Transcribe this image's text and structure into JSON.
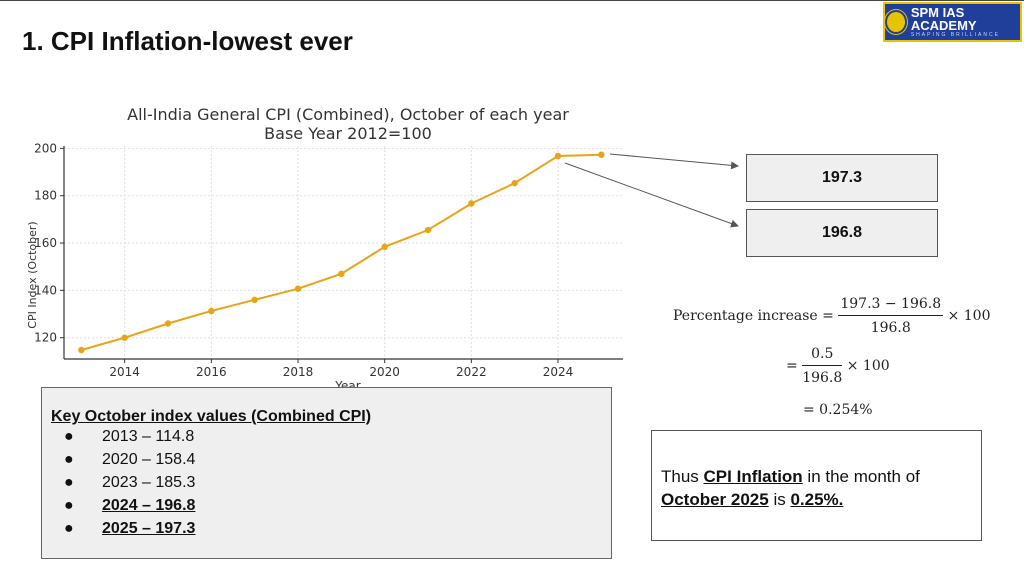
{
  "slide": {
    "title": "1.  CPI Inflation-lowest ever"
  },
  "logo": {
    "text": "SPM IAS ACADEMY",
    "tagline": "SHAPING BRILLIANCE",
    "colors": {
      "bg": "#1f3f9a",
      "border": "#e8c400"
    }
  },
  "chart_data": {
    "type": "line",
    "title": "All-India General CPI (Combined), October of each year",
    "subtitle": "Base Year 2012=100",
    "xlabel": "Year",
    "ylabel": "CPI Index (October)",
    "x": [
      2013,
      2014,
      2015,
      2016,
      2017,
      2018,
      2019,
      2020,
      2021,
      2022,
      2023,
      2024,
      2025
    ],
    "series": [
      {
        "values": [
          114.8,
          120.0,
          126.0,
          131.3,
          136.0,
          140.7,
          147.0,
          158.4,
          165.5,
          176.7,
          185.3,
          196.8,
          197.3
        ],
        "color": "#e8a317"
      }
    ],
    "xticks": [
      "2014",
      "2016",
      "2018",
      "2020",
      "2022",
      "2024"
    ],
    "yticks": [
      "120",
      "140",
      "160",
      "180",
      "200"
    ],
    "xlim": [
      2012.6,
      2025.5
    ],
    "ylim": [
      111,
      201
    ],
    "grid": true
  },
  "callouts": {
    "v2025": "197.3",
    "v2024": "196.8"
  },
  "key": {
    "heading": "Key October index values (Combined CPI)",
    "items": [
      {
        "text": "2013 – 114.8",
        "bold": false
      },
      {
        "text": "2020 – 158.4",
        "bold": false
      },
      {
        "text": "2023 – 185.3",
        "bold": false
      },
      {
        "text": "2024 – 196.8",
        "bold": true
      },
      {
        "text": "2025 – 197.3",
        "bold": true
      }
    ]
  },
  "math": {
    "label": "Percentage increase =",
    "num1": "197.3 − 196.8",
    "den1": "196.8",
    "times": "× 100",
    "eq": "=",
    "num2": "0.5",
    "den2": "196.8",
    "result": "= 0.254%"
  },
  "conclusion": {
    "p1": "Thus ",
    "b1": "CPI Inflation",
    "p2": " in the month of ",
    "b2": "October 2025",
    "p3": " is ",
    "b3": "0.25%."
  }
}
